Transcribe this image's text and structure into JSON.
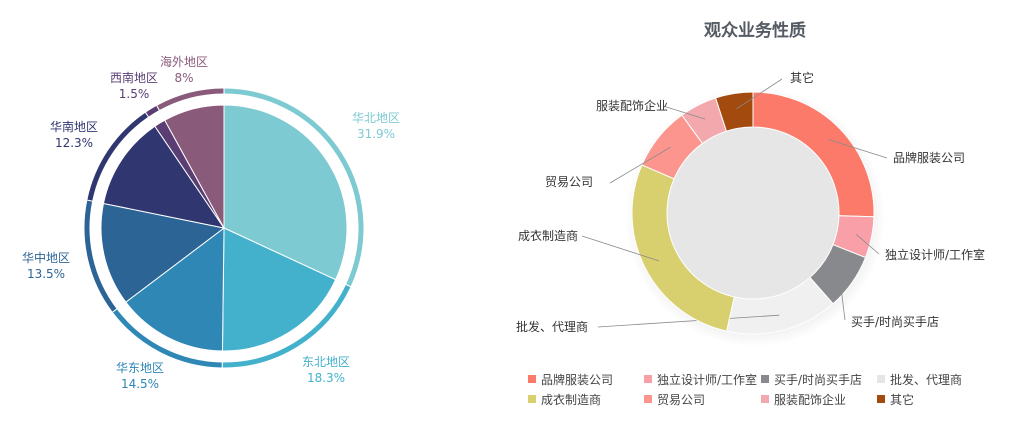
{
  "chart_data": [
    {
      "type": "pie",
      "slices": [
        {
          "label": "华北地区",
          "value": 31.9,
          "value_label": "31.9%",
          "color": "#7ecad2"
        },
        {
          "label": "东北地区",
          "value": 18.3,
          "value_label": "18.3%",
          "color": "#44b1cc"
        },
        {
          "label": "华东地区",
          "value": 14.5,
          "value_label": "14.5%",
          "color": "#2f87b6"
        },
        {
          "label": "华中地区",
          "value": 13.5,
          "value_label": "13.5%",
          "color": "#2c6495"
        },
        {
          "label": "华南地区",
          "value": 12.3,
          "value_label": "12.3%",
          "color": "#2f3670"
        },
        {
          "label": "西南地区",
          "value": 1.5,
          "value_label": "1.5%",
          "color": "#5a3e73"
        },
        {
          "label": "海外地区",
          "value": 8,
          "value_label": "8%",
          "color": "#8a5a7b"
        }
      ]
    },
    {
      "type": "pie",
      "subtype": "donut",
      "title": "观众业务性质",
      "slices": [
        {
          "label": "品牌服装公司",
          "value": 25.5,
          "color": "#fb7a69"
        },
        {
          "label": "独立设计师/工作室",
          "value": 5.5,
          "color": "#f89fa8"
        },
        {
          "label": "买手/时尚买手店",
          "value": 7.5,
          "color": "#88898d"
        },
        {
          "label": "批发、代理商",
          "value": 15,
          "color": "#f0f0f0"
        },
        {
          "label": "成衣制造商",
          "value": 28,
          "color": "#d8cf6e"
        },
        {
          "label": "贸易公司",
          "value": 8.5,
          "color": "#fb958d"
        },
        {
          "label": "服装配饰企业",
          "value": 5,
          "color": "#f3a8ae"
        },
        {
          "label": "其它",
          "value": 5,
          "color": "#a34a0f"
        }
      ],
      "legend": {
        "position": "bottom",
        "columns": 4
      }
    }
  ]
}
